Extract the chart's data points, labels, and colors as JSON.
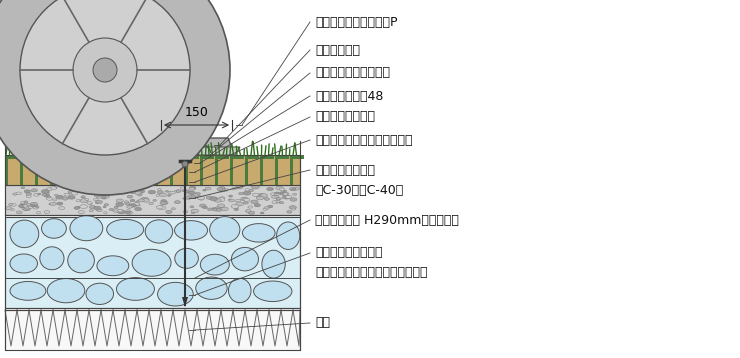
{
  "bg_color": "#ffffff",
  "labels": [
    "パーキングストッパーP",
    "芝生（目土）",
    "良質客土（タエルド）",
    "ターフグリッド48",
    "サンドクッション",
    "透水シート（ペイブシート）",
    "クラッシャーラン",
    "（C-30又はC-40）",
    "アンカーピン H290mm（付属品）",
    "フィルター層（砂）",
    "又は透水シート（ペイブシート）",
    "路床"
  ],
  "label_fontsize": 9,
  "dim_label": "150",
  "layer_colors": {
    "turfgrid_green": "#4a7c3f",
    "turfgrid_sandy": "#c8a96e",
    "turfgrid_border": "#3a6e2a",
    "grass_dark": "#2d6e1a",
    "crusher_bg": "#d0d0d0",
    "filter_bg": "#daeef5",
    "filter_stone": "#c0e0f0",
    "subbase_bg": "#f0f0f0",
    "stopper_gray": "#b8b8b8",
    "stopper_dark": "#888888",
    "wheel_outer": "#b0b0b0",
    "wheel_inner": "#d0d0d0",
    "line_color": "#444444"
  }
}
